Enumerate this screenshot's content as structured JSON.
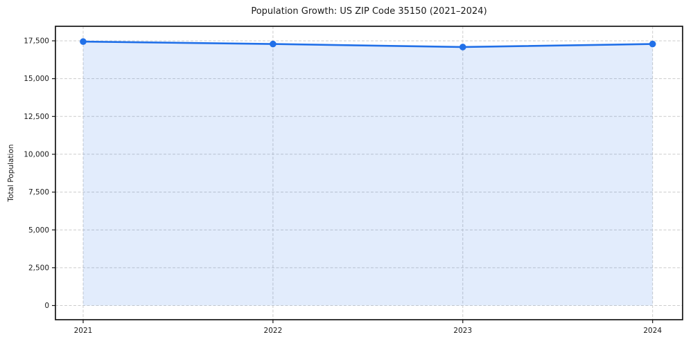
{
  "chart_data": {
    "type": "line",
    "title": "Population Growth: US ZIP Code 35150 (2021–2024)",
    "xlabel": "",
    "ylabel": "Total Population",
    "categories": [
      "2021",
      "2022",
      "2023",
      "2024"
    ],
    "series": [
      {
        "name": "Total Population",
        "values": [
          17450,
          17290,
          17090,
          17290
        ]
      }
    ],
    "ylim": [
      0,
      17500
    ],
    "yticks": [
      0,
      2500,
      5000,
      7500,
      10000,
      12500,
      15000,
      17500
    ],
    "ytick_labels": [
      "0",
      "2,500",
      "5,000",
      "7,500",
      "10,000",
      "12,500",
      "15,000",
      "17,500"
    ],
    "grid": true,
    "legend": "none",
    "area_fill": true,
    "marker": "circle",
    "line_color": "#2170e8",
    "fill_opacity": 0.13,
    "grid_color": "#cccccc",
    "frame_color": "#141414",
    "text_color": "#1a1a1a"
  }
}
